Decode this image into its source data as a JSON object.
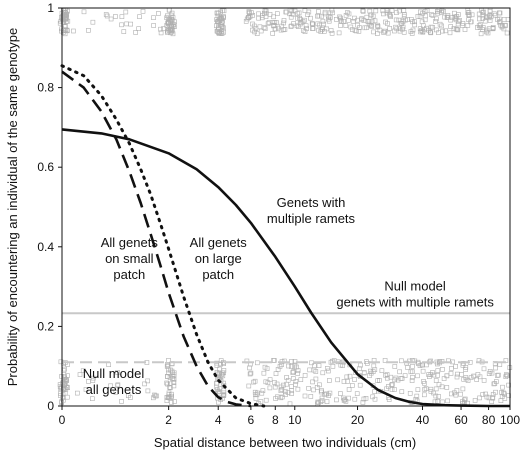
{
  "chart_data": {
    "type": "line",
    "xlabel": "Spatial distance between two individuals (cm)",
    "ylabel": "Probability of encountering an individual of the same genotype",
    "xlim": [
      0,
      100
    ],
    "ylim": [
      0,
      1
    ],
    "x_scale": "log1p",
    "x_ticks": [
      {
        "value": 0,
        "label": "0"
      },
      {
        "value": 2,
        "label": "2"
      },
      {
        "value": 4,
        "label": "4"
      },
      {
        "value": 6,
        "label": "6"
      },
      {
        "value": 8,
        "label": "8"
      },
      {
        "value": 10,
        "label": "10"
      },
      {
        "value": 20,
        "label": "20"
      },
      {
        "value": 40,
        "label": "40"
      },
      {
        "value": 60,
        "label": "60"
      },
      {
        "value": 80,
        "label": "80"
      },
      {
        "value": 100,
        "label": "100"
      }
    ],
    "y_ticks": [
      {
        "value": 0,
        "label": "0"
      },
      {
        "value": 0.2,
        "label": "0.2"
      },
      {
        "value": 0.4,
        "label": "0.4"
      },
      {
        "value": 0.6,
        "label": "0.6"
      },
      {
        "value": 0.8,
        "label": "0.8"
      },
      {
        "value": 1,
        "label": "1"
      }
    ],
    "series": [
      {
        "style": "solid",
        "color": "#111111",
        "x": [
          0,
          0.5,
          1,
          2,
          3,
          4,
          5,
          6,
          8,
          10,
          12,
          15,
          20,
          25,
          30,
          35,
          40,
          50,
          60,
          80,
          100
        ],
        "y": [
          0.695,
          0.685,
          0.67,
          0.635,
          0.595,
          0.55,
          0.505,
          0.46,
          0.375,
          0.3,
          0.235,
          0.16,
          0.08,
          0.04,
          0.02,
          0.01,
          0.005,
          0.002,
          0.001,
          0,
          0
        ]
      },
      {
        "style": "dashed",
        "color": "#111111",
        "x": [
          0,
          0.25,
          0.5,
          0.75,
          1,
          1.25,
          1.5,
          1.75,
          2,
          2.5,
          3,
          3.5,
          4,
          4.5,
          5,
          6
        ],
        "y": [
          0.84,
          0.8,
          0.74,
          0.67,
          0.59,
          0.51,
          0.43,
          0.355,
          0.285,
          0.175,
          0.1,
          0.05,
          0.022,
          0.01,
          0.004,
          0
        ]
      },
      {
        "style": "dotted",
        "color": "#111111",
        "x": [
          0,
          0.25,
          0.5,
          0.75,
          1,
          1.25,
          1.5,
          1.75,
          2,
          2.5,
          3,
          3.5,
          4,
          5,
          6,
          7
        ],
        "y": [
          0.855,
          0.83,
          0.78,
          0.72,
          0.66,
          0.595,
          0.53,
          0.46,
          0.395,
          0.275,
          0.18,
          0.11,
          0.065,
          0.02,
          0.006,
          0
        ]
      }
    ],
    "reference_lines": [
      {
        "y": 0.233,
        "color": "#c8c8c8",
        "style": "solid"
      },
      {
        "y": 0.11,
        "color": "#c8c8c8",
        "style": "dashed"
      }
    ],
    "scatter_bands": [
      {
        "y_min": 0.93,
        "y_max": 1.0,
        "marker": "square",
        "color": "#b0b0b0"
      },
      {
        "y_min": 0.0,
        "y_max": 0.12,
        "marker": "square",
        "color": "#b0b0b0"
      }
    ],
    "annotations": [
      {
        "lines": [
          "Genets with",
          "multiple ramets"
        ],
        "x": 12,
        "y": 0.5
      },
      {
        "lines": [
          "All genets",
          "on small",
          "patch"
        ],
        "x": 1.0,
        "y": 0.4
      },
      {
        "lines": [
          "All genets",
          "on large",
          "patch"
        ],
        "x": 4.0,
        "y": 0.4
      },
      {
        "lines": [
          "Null model",
          "genets with multiple ramets"
        ],
        "x": 37,
        "y": 0.29
      },
      {
        "lines": [
          "Null model",
          "all genets"
        ],
        "x": 0.7,
        "y": 0.07
      }
    ]
  }
}
